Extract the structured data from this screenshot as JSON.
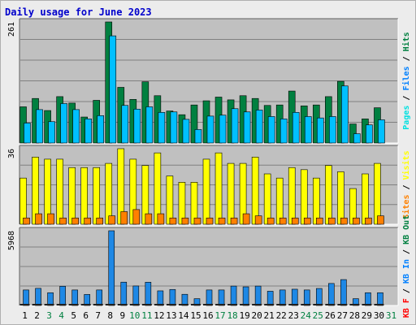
{
  "chart_data": {
    "type": "bar",
    "title": "Daily usage for June 2023",
    "title_color": "#0000cc",
    "categories": [
      "1",
      "2",
      "3",
      "4",
      "5",
      "6",
      "7",
      "8",
      "9",
      "10",
      "11",
      "12",
      "13",
      "14",
      "15",
      "16",
      "17",
      "18",
      "19",
      "20",
      "21",
      "22",
      "23",
      "24",
      "25",
      "26",
      "27",
      "28",
      "29",
      "30",
      "31"
    ],
    "weekend_days": [
      "3",
      "4",
      "10",
      "11",
      "17",
      "18",
      "24",
      "25",
      "31"
    ],
    "panels": [
      {
        "name": "pages-files-hits",
        "ymax_label": "261",
        "ymax": 261,
        "series": [
          {
            "name": "Hits",
            "color": "#008040",
            "values": [
              78,
              96,
              70,
              100,
              86,
              56,
              92,
              261,
              120,
              94,
              132,
              102,
              69,
              61,
              82,
              91,
              99,
              93,
              102,
              96,
              81,
              82,
              112,
              80,
              82,
              100,
              133,
              41,
              52,
              76,
              0
            ]
          },
          {
            "name": "Files",
            "color": "#00c0ff",
            "values": [
              43,
              72,
              46,
              85,
              72,
              52,
              59,
              231,
              81,
              73,
              78,
              66,
              67,
              51,
              29,
              58,
              60,
              74,
              67,
              71,
              57,
              52,
              66,
              57,
              54,
              57,
              123,
              20,
              39,
              50,
              0
            ]
          },
          {
            "name": "Pages",
            "color": "#00e0e0",
            "values": [
              0,
              0,
              0,
              0,
              0,
              0,
              0,
              0,
              0,
              0,
              0,
              0,
              0,
              0,
              0,
              0,
              0,
              0,
              0,
              0,
              0,
              0,
              0,
              0,
              0,
              0,
              0,
              0,
              0,
              0,
              0
            ]
          }
        ],
        "legend": [
          {
            "label": "Pages",
            "color": "#00e0e0"
          },
          {
            "label": "Files",
            "color": "#0080ff"
          },
          {
            "label": "Hits",
            "color": "#008040"
          }
        ]
      },
      {
        "name": "visits-sites",
        "ymax_label": "36",
        "ymax": 36,
        "series": [
          {
            "name": "Visits",
            "color": "#ffff00",
            "values": [
              22,
              32,
              31,
              31,
              27,
              27,
              27,
              29,
              36,
              31,
              28,
              34,
              23,
              20,
              20,
              31,
              34,
              29,
              29,
              32,
              24,
              22,
              27,
              26,
              22,
              28,
              25,
              17,
              24,
              29,
              0
            ]
          },
          {
            "name": "Sites",
            "color": "#ff8000",
            "values": [
              3,
              5,
              5,
              3,
              3,
              3,
              3,
              4,
              6,
              7,
              5,
              5,
              3,
              3,
              3,
              3,
              3,
              3,
              5,
              4,
              3,
              3,
              3,
              3,
              3,
              3,
              3,
              3,
              3,
              4,
              0
            ]
          }
        ],
        "legend": [
          {
            "label": "Sites",
            "color": "#ff8000"
          },
          {
            "label": "Visits",
            "color": "#ffff00"
          }
        ]
      },
      {
        "name": "kb",
        "ymax_label": "5968",
        "ymax": 5968,
        "series": [
          {
            "name": "KB In",
            "color": "#0080ff",
            "values": [
              0,
              0,
              0,
              0,
              0,
              0,
              0,
              0,
              0,
              0,
              0,
              0,
              0,
              0,
              0,
              0,
              0,
              0,
              0,
              0,
              0,
              0,
              0,
              0,
              0,
              0,
              0,
              0,
              0,
              0,
              0
            ]
          },
          {
            "name": "KB F",
            "color": "#ff0000",
            "values": [
              0,
              0,
              0,
              0,
              0,
              0,
              0,
              0,
              0,
              0,
              0,
              0,
              0,
              0,
              0,
              0,
              0,
              0,
              0,
              0,
              0,
              0,
              0,
              0,
              0,
              0,
              0,
              0,
              0,
              0,
              0
            ]
          },
          {
            "name": "KB Out",
            "color": "#1e88e5",
            "values": [
              1240,
              1370,
              1020,
              1536,
              1240,
              882,
              1240,
              5968,
              1866,
              1560,
              1860,
              1170,
              1280,
              894,
              544,
              1240,
              1240,
              1550,
              1490,
              1550,
              1140,
              1240,
              1300,
              1240,
              1360,
              1760,
              2070,
              544,
              1020,
              1020,
              0
            ]
          }
        ],
        "legend": [
          {
            "label": "KB F",
            "color": "#ff0000"
          },
          {
            "label": "/",
            "color": "#000000"
          },
          {
            "label": "KB In",
            "color": "#0080ff"
          },
          {
            "label": "/",
            "color": "#000000"
          },
          {
            "label": "KB Out",
            "color": "#008040"
          }
        ]
      }
    ],
    "colors": {
      "plot_bg": "#c0c0c0",
      "grid": "#808080",
      "weekday_label": "#000000",
      "weekend_label": "#008040"
    }
  }
}
